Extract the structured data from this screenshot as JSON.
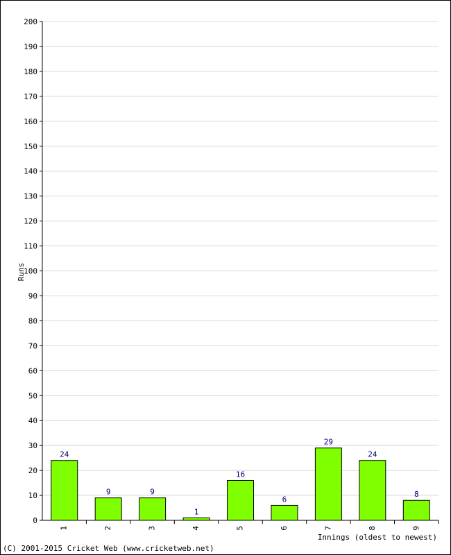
{
  "chart_data": {
    "type": "bar",
    "title": "",
    "xlabel": "Innings (oldest to newest)",
    "ylabel": "Runs",
    "categories": [
      "1",
      "2",
      "3",
      "4",
      "5",
      "6",
      "7",
      "8",
      "9"
    ],
    "values": [
      24,
      9,
      9,
      1,
      16,
      6,
      29,
      24,
      8
    ],
    "ylim": [
      0,
      200
    ],
    "ytick_step": 10,
    "grid": true,
    "colors": {
      "bar_fill": "#80ff00",
      "bar_stroke": "#000000",
      "value_label": "#000080",
      "grid": "#d8d8d8",
      "axis": "#000000"
    }
  },
  "footer": {
    "copyright": "(C) 2001-2015 Cricket Web (www.cricketweb.net)"
  }
}
